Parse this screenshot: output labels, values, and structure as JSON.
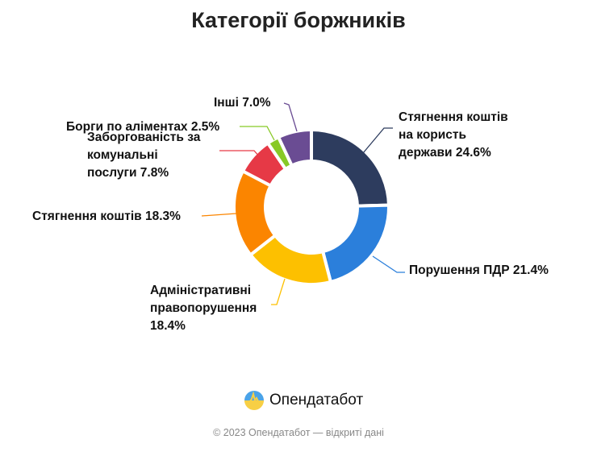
{
  "chart_data": {
    "type": "pie",
    "donut": true,
    "title": "Категорії боржників",
    "categories": [
      "Стягнення коштів на користь держави",
      "Порушення ПДР",
      "Адміністративні правопорушення",
      "Стягнення коштів",
      "Заборгованість за комунальні послуги",
      "Борги по аліментах",
      "Інші"
    ],
    "values": [
      24.6,
      21.4,
      18.4,
      18.3,
      7.8,
      2.5,
      7.0
    ],
    "colors": [
      "#2d3c5e",
      "#2b7fdb",
      "#fdc000",
      "#fb8500",
      "#e63946",
      "#88c926",
      "#6a4c93"
    ],
    "labels": [
      [
        "Стягнення коштів",
        "на користь",
        "держави 24.6%"
      ],
      [
        "Порушення ПДР 21.4%"
      ],
      [
        "Адміністративні",
        "правопорушення",
        "18.4%"
      ],
      [
        "Стягнення коштів 18.3%"
      ],
      [
        "Заборгованість за",
        "комунальні",
        "послуги 7.8%"
      ],
      [
        "Борги по аліментах 2.5%"
      ],
      [
        "Інші 7.0%"
      ]
    ],
    "legend": "none",
    "start": "top",
    "direction": "clockwise"
  },
  "brand": {
    "name": "Опендатабот"
  },
  "footer": "© 2023 Опендатабот — відкриті дані"
}
